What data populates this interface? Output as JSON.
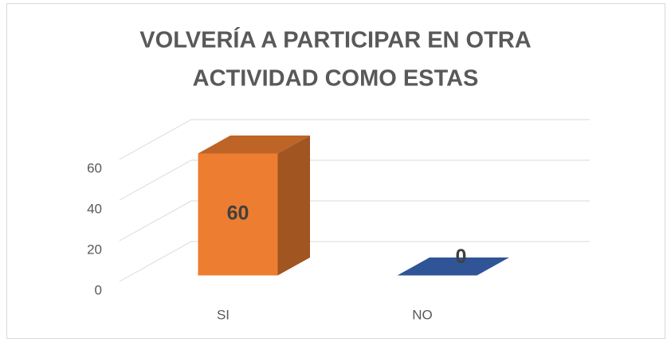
{
  "chart_data": {
    "type": "bar3d",
    "title": [
      "VOLVERÍA A PARTICIPAR EN OTRA",
      "ACTIVIDAD COMO ESTAS"
    ],
    "categories": [
      "SI",
      "NO"
    ],
    "values": [
      60,
      0
    ],
    "colors": [
      "#ed7d31",
      "#2f5597"
    ],
    "ylim": [
      0,
      60
    ],
    "yticks": [
      0,
      20,
      40,
      60
    ],
    "grid": true
  }
}
